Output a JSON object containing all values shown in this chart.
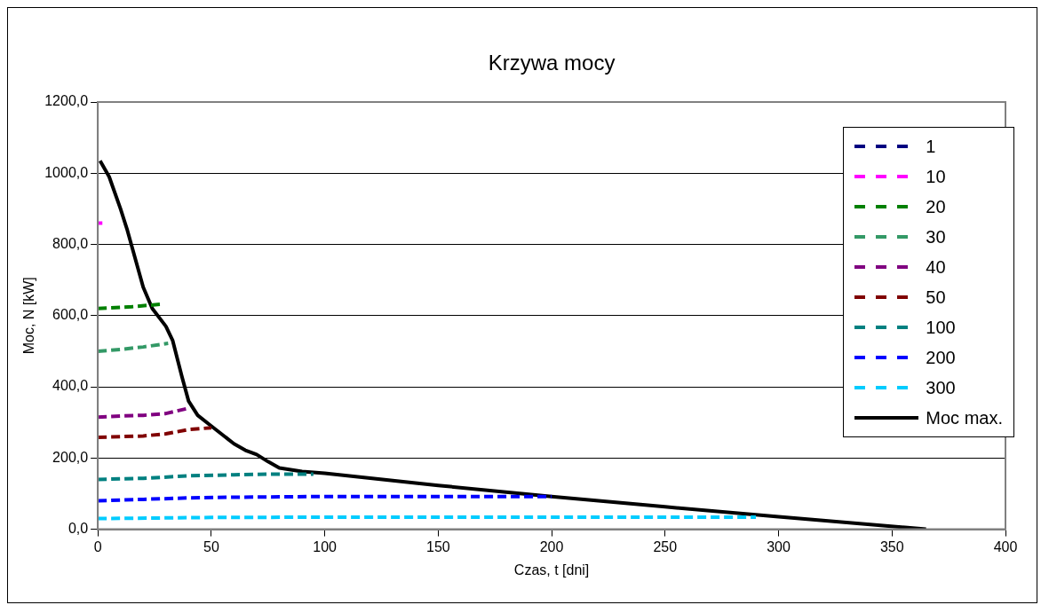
{
  "chart_data": {
    "type": "line",
    "title": "Krzywa mocy",
    "xlabel": "Czas, t [dni]",
    "ylabel": "Moc, N [kW]",
    "xlim": [
      0,
      400
    ],
    "xticks": [
      0,
      50,
      100,
      150,
      200,
      250,
      300,
      350,
      400
    ],
    "ylim": [
      0,
      1200
    ],
    "yticks": [
      {
        "value": 0,
        "label": "0,0"
      },
      {
        "value": 200,
        "label": "200,0"
      },
      {
        "value": 400,
        "label": "400,0"
      },
      {
        "value": 600,
        "label": "600,0"
      },
      {
        "value": 800,
        "label": "800,0"
      },
      {
        "value": 1000,
        "label": "1000,0"
      },
      {
        "value": 1200,
        "label": "1200,0"
      }
    ],
    "grid": "y",
    "legend": "top right",
    "marker": "none",
    "series": [
      {
        "name": "1",
        "color": "#000080",
        "line_style": "dashed"
      },
      {
        "name": "10",
        "color": "#ff00ff",
        "line_style": "dashed",
        "x": [
          0,
          2
        ],
        "values": [
          860,
          860
        ]
      },
      {
        "name": "20",
        "color": "#008000",
        "line_style": "dashed",
        "x": [
          0,
          15,
          28
        ],
        "values": [
          620,
          625,
          632
        ]
      },
      {
        "name": "30",
        "color": "#339966",
        "line_style": "dashed",
        "x": [
          0,
          10,
          20,
          31
        ],
        "values": [
          500,
          505,
          512,
          522
        ]
      },
      {
        "name": "40",
        "color": "#800080",
        "line_style": "dashed",
        "x": [
          0,
          10,
          20,
          30,
          40
        ],
        "values": [
          315,
          318,
          320,
          325,
          340
        ]
      },
      {
        "name": "50",
        "color": "#800000",
        "line_style": "dashed",
        "x": [
          0,
          10,
          20,
          30,
          40,
          50
        ],
        "values": [
          258,
          260,
          262,
          268,
          280,
          285
        ]
      },
      {
        "name": "100",
        "color": "#008080",
        "line_style": "dashed",
        "x": [
          0,
          20,
          40,
          60,
          80,
          95
        ],
        "values": [
          140,
          143,
          150,
          153,
          155,
          155
        ]
      },
      {
        "name": "200",
        "color": "#0000ff",
        "line_style": "dashed",
        "x": [
          0,
          20,
          40,
          60,
          80,
          100,
          150,
          200
        ],
        "values": [
          80,
          84,
          88,
          90,
          91,
          92,
          92,
          92
        ]
      },
      {
        "name": "300",
        "color": "#00ccff",
        "line_style": "dashed",
        "x": [
          0,
          50,
          100,
          150,
          200,
          250,
          290
        ],
        "values": [
          30,
          33,
          34,
          34,
          34,
          34,
          34
        ]
      },
      {
        "name": "Moc max.",
        "color": "#000000",
        "line_style": "solid",
        "x": [
          1,
          5,
          10,
          13,
          20,
          24,
          30,
          33,
          37,
          40,
          44,
          50,
          55,
          60,
          65,
          70,
          75,
          80,
          90,
          100,
          150,
          200,
          250,
          300,
          365
        ],
        "values": [
          1035,
          990,
          900,
          840,
          680,
          620,
          570,
          530,
          430,
          360,
          320,
          290,
          265,
          240,
          222,
          210,
          190,
          172,
          162,
          157,
          123,
          92,
          63,
          35,
          0
        ]
      }
    ]
  }
}
